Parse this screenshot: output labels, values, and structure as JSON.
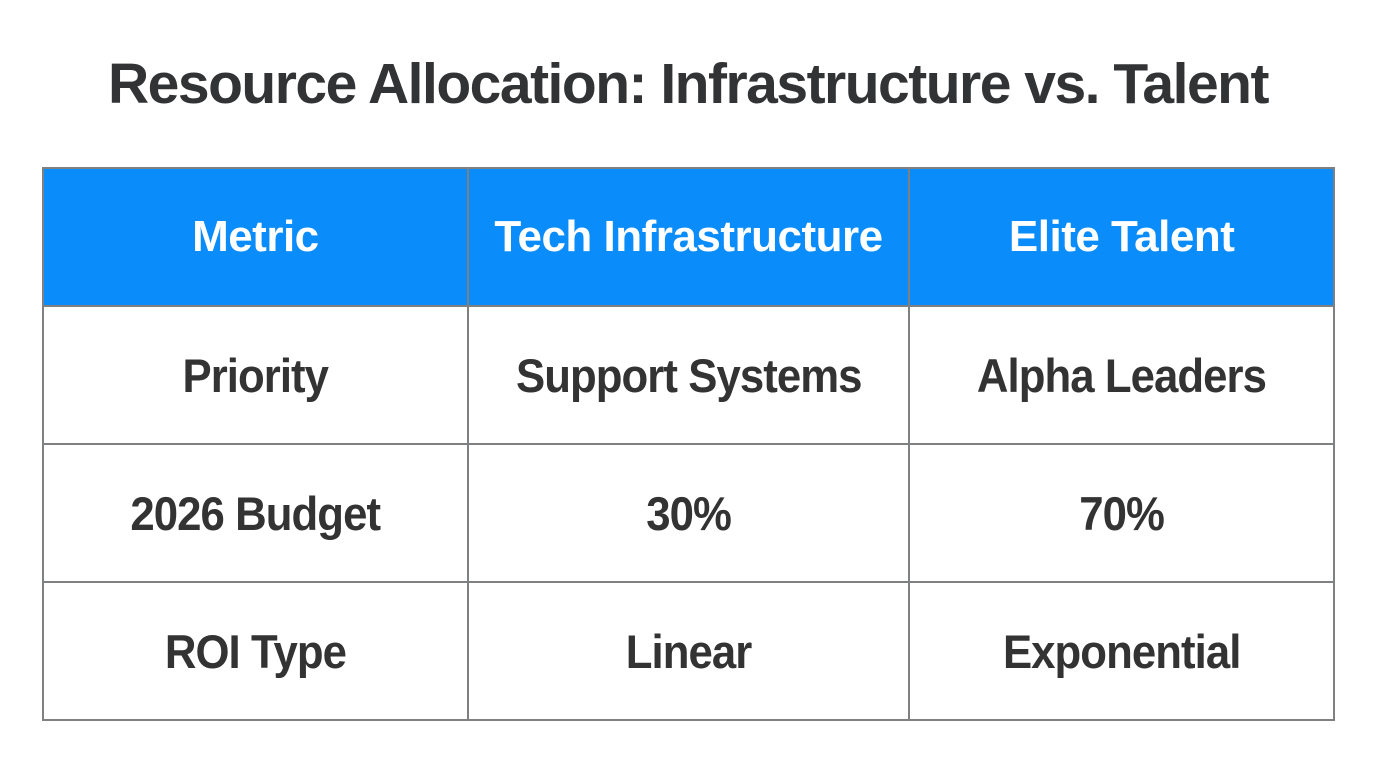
{
  "page": {
    "background_color": "#ffffff"
  },
  "title": "Resource Allocation: Infrastructure vs. Talent",
  "colors": {
    "title_text": "#323335",
    "header_background": "#0a8cfa",
    "header_text": "#ffffff",
    "body_text": "#333333",
    "table_border": "#7e8082"
  },
  "chart_data": {
    "type": "table",
    "title": "Resource Allocation: Infrastructure vs. Talent",
    "columns": [
      "Metric",
      "Tech Infrastructure",
      "Elite Talent"
    ],
    "rows": [
      [
        "Priority",
        "Support Systems",
        "Alpha Leaders"
      ],
      [
        "2026 Budget",
        "30%",
        "70%"
      ],
      [
        "ROI Type",
        "Linear",
        "Exponential"
      ]
    ],
    "layout_hints": {
      "header_fill": "#0a8cfa",
      "grid": "on",
      "text_weight": "bold",
      "alignment": "center"
    }
  }
}
